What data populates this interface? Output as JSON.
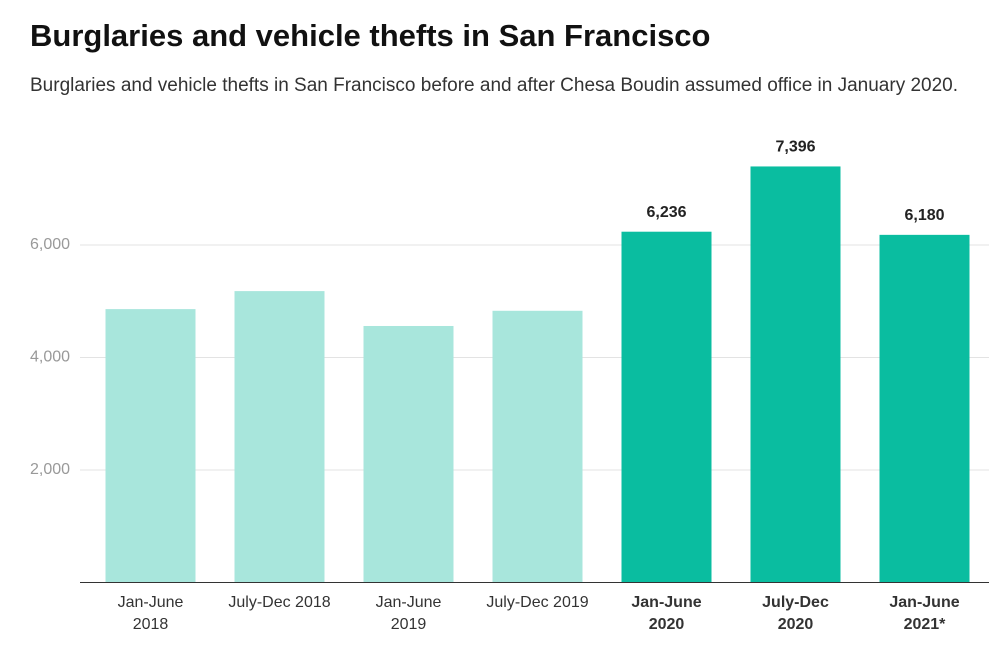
{
  "chart_data": {
    "type": "bar",
    "title": "Burglaries and vehicle thefts in San Francisco",
    "subtitle": "Burglaries and vehicle thefts in San Francisco before and after Chesa Boudin assumed office in January 2020.",
    "categories": [
      [
        "Jan-June",
        "2018"
      ],
      [
        "July-Dec 2018"
      ],
      [
        "Jan-June",
        "2019"
      ],
      [
        "July-Dec 2019"
      ],
      [
        "Jan-June",
        "2020"
      ],
      [
        "July-Dec",
        "2020"
      ],
      [
        "Jan-June",
        "2021*"
      ]
    ],
    "values": [
      4860,
      5180,
      4560,
      4830,
      6236,
      7396,
      6180
    ],
    "value_labels": [
      null,
      null,
      null,
      null,
      "6,236",
      "7,396",
      "6,180"
    ],
    "colors": [
      "#a8e6dc",
      "#a8e6dc",
      "#a8e6dc",
      "#a8e6dc",
      "#0abda0",
      "#0abda0",
      "#0abda0"
    ],
    "ylim": [
      0,
      7500
    ],
    "yticks": [
      {
        "value": 2000,
        "label": "2,000"
      },
      {
        "value": 4000,
        "label": "4,000"
      },
      {
        "value": 6000,
        "label": "6,000"
      }
    ],
    "grid": true
  }
}
